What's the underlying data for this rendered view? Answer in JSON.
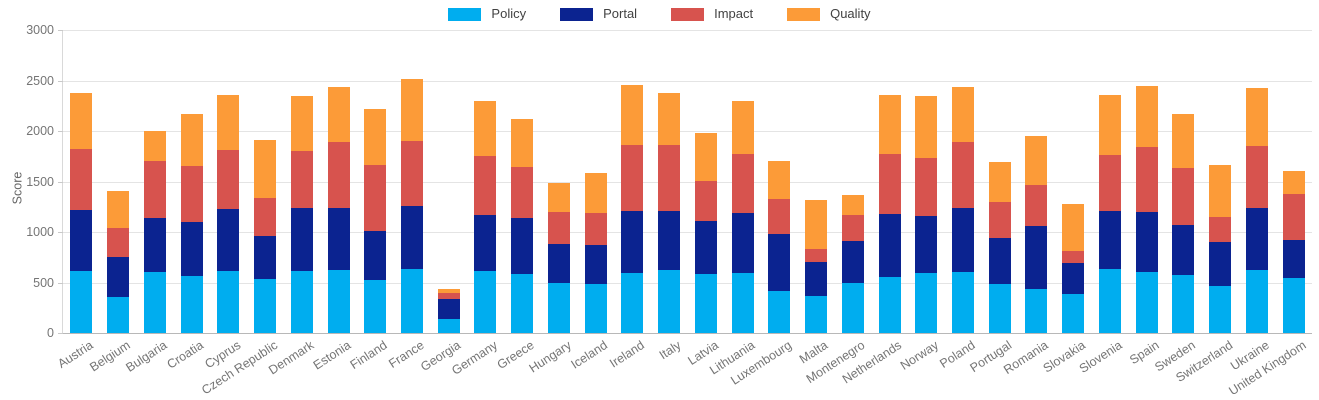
{
  "chart_data": {
    "type": "bar",
    "stacked": true,
    "ylabel": "Score",
    "ylim": [
      0,
      3000
    ],
    "yticks": [
      0,
      500,
      1000,
      1500,
      2000,
      2500,
      3000
    ],
    "grid": "horizontal",
    "legend_position": "top-center",
    "categories": [
      "Austria",
      "Belgium",
      "Bulgaria",
      "Croatia",
      "Cyprus",
      "Czech Republic",
      "Denmark",
      "Estonia",
      "Finland",
      "France",
      "Georgia",
      "Germany",
      "Greece",
      "Hungary",
      "Iceland",
      "Ireland",
      "Italy",
      "Latvia",
      "Lithuania",
      "Luxembourg",
      "Malta",
      "Montenegro",
      "Netherlands",
      "Norway",
      "Poland",
      "Portugal",
      "Romania",
      "Slovakia",
      "Slovenia",
      "Spain",
      "Sweden",
      "Switzerland",
      "Ukraine",
      "United Kingdom"
    ],
    "series": [
      {
        "name": "Policy",
        "color": "#00ADEF",
        "values": [
          610,
          355,
          605,
          560,
          615,
          535,
          615,
          625,
          525,
          635,
          140,
          615,
          585,
          500,
          490,
          595,
          625,
          585,
          590,
          420,
          365,
          495,
          550,
          590,
          605,
          485,
          440,
          390,
          630,
          605,
          575,
          465,
          625,
          540
        ]
      },
      {
        "name": "Portal",
        "color": "#0B2390",
        "values": [
          610,
          395,
          535,
          540,
          615,
          430,
          625,
          615,
          490,
          620,
          200,
          550,
          555,
          380,
          380,
          615,
          585,
          520,
          595,
          560,
          335,
          415,
          625,
          565,
          630,
          460,
          615,
          305,
          580,
          590,
          495,
          440,
          615,
          385
        ]
      },
      {
        "name": "Impact",
        "color": "#D7534E",
        "values": [
          605,
          285,
          565,
          550,
          580,
          375,
          560,
          650,
          650,
          645,
          60,
          590,
          505,
          320,
          320,
          655,
          655,
          405,
          585,
          345,
          130,
          255,
          595,
          580,
          655,
          350,
          410,
          115,
          550,
          650,
          560,
          240,
          610,
          450
        ]
      },
      {
        "name": "Quality",
        "color": "#FC9B38",
        "values": [
          550,
          375,
          300,
          520,
          545,
          570,
          550,
          550,
          550,
          620,
          40,
          545,
          470,
          290,
          395,
          590,
          510,
          475,
          530,
          380,
          490,
          200,
          590,
          615,
          550,
          395,
          485,
          470,
          600,
          600,
          535,
          520,
          580,
          225
        ]
      }
    ]
  }
}
